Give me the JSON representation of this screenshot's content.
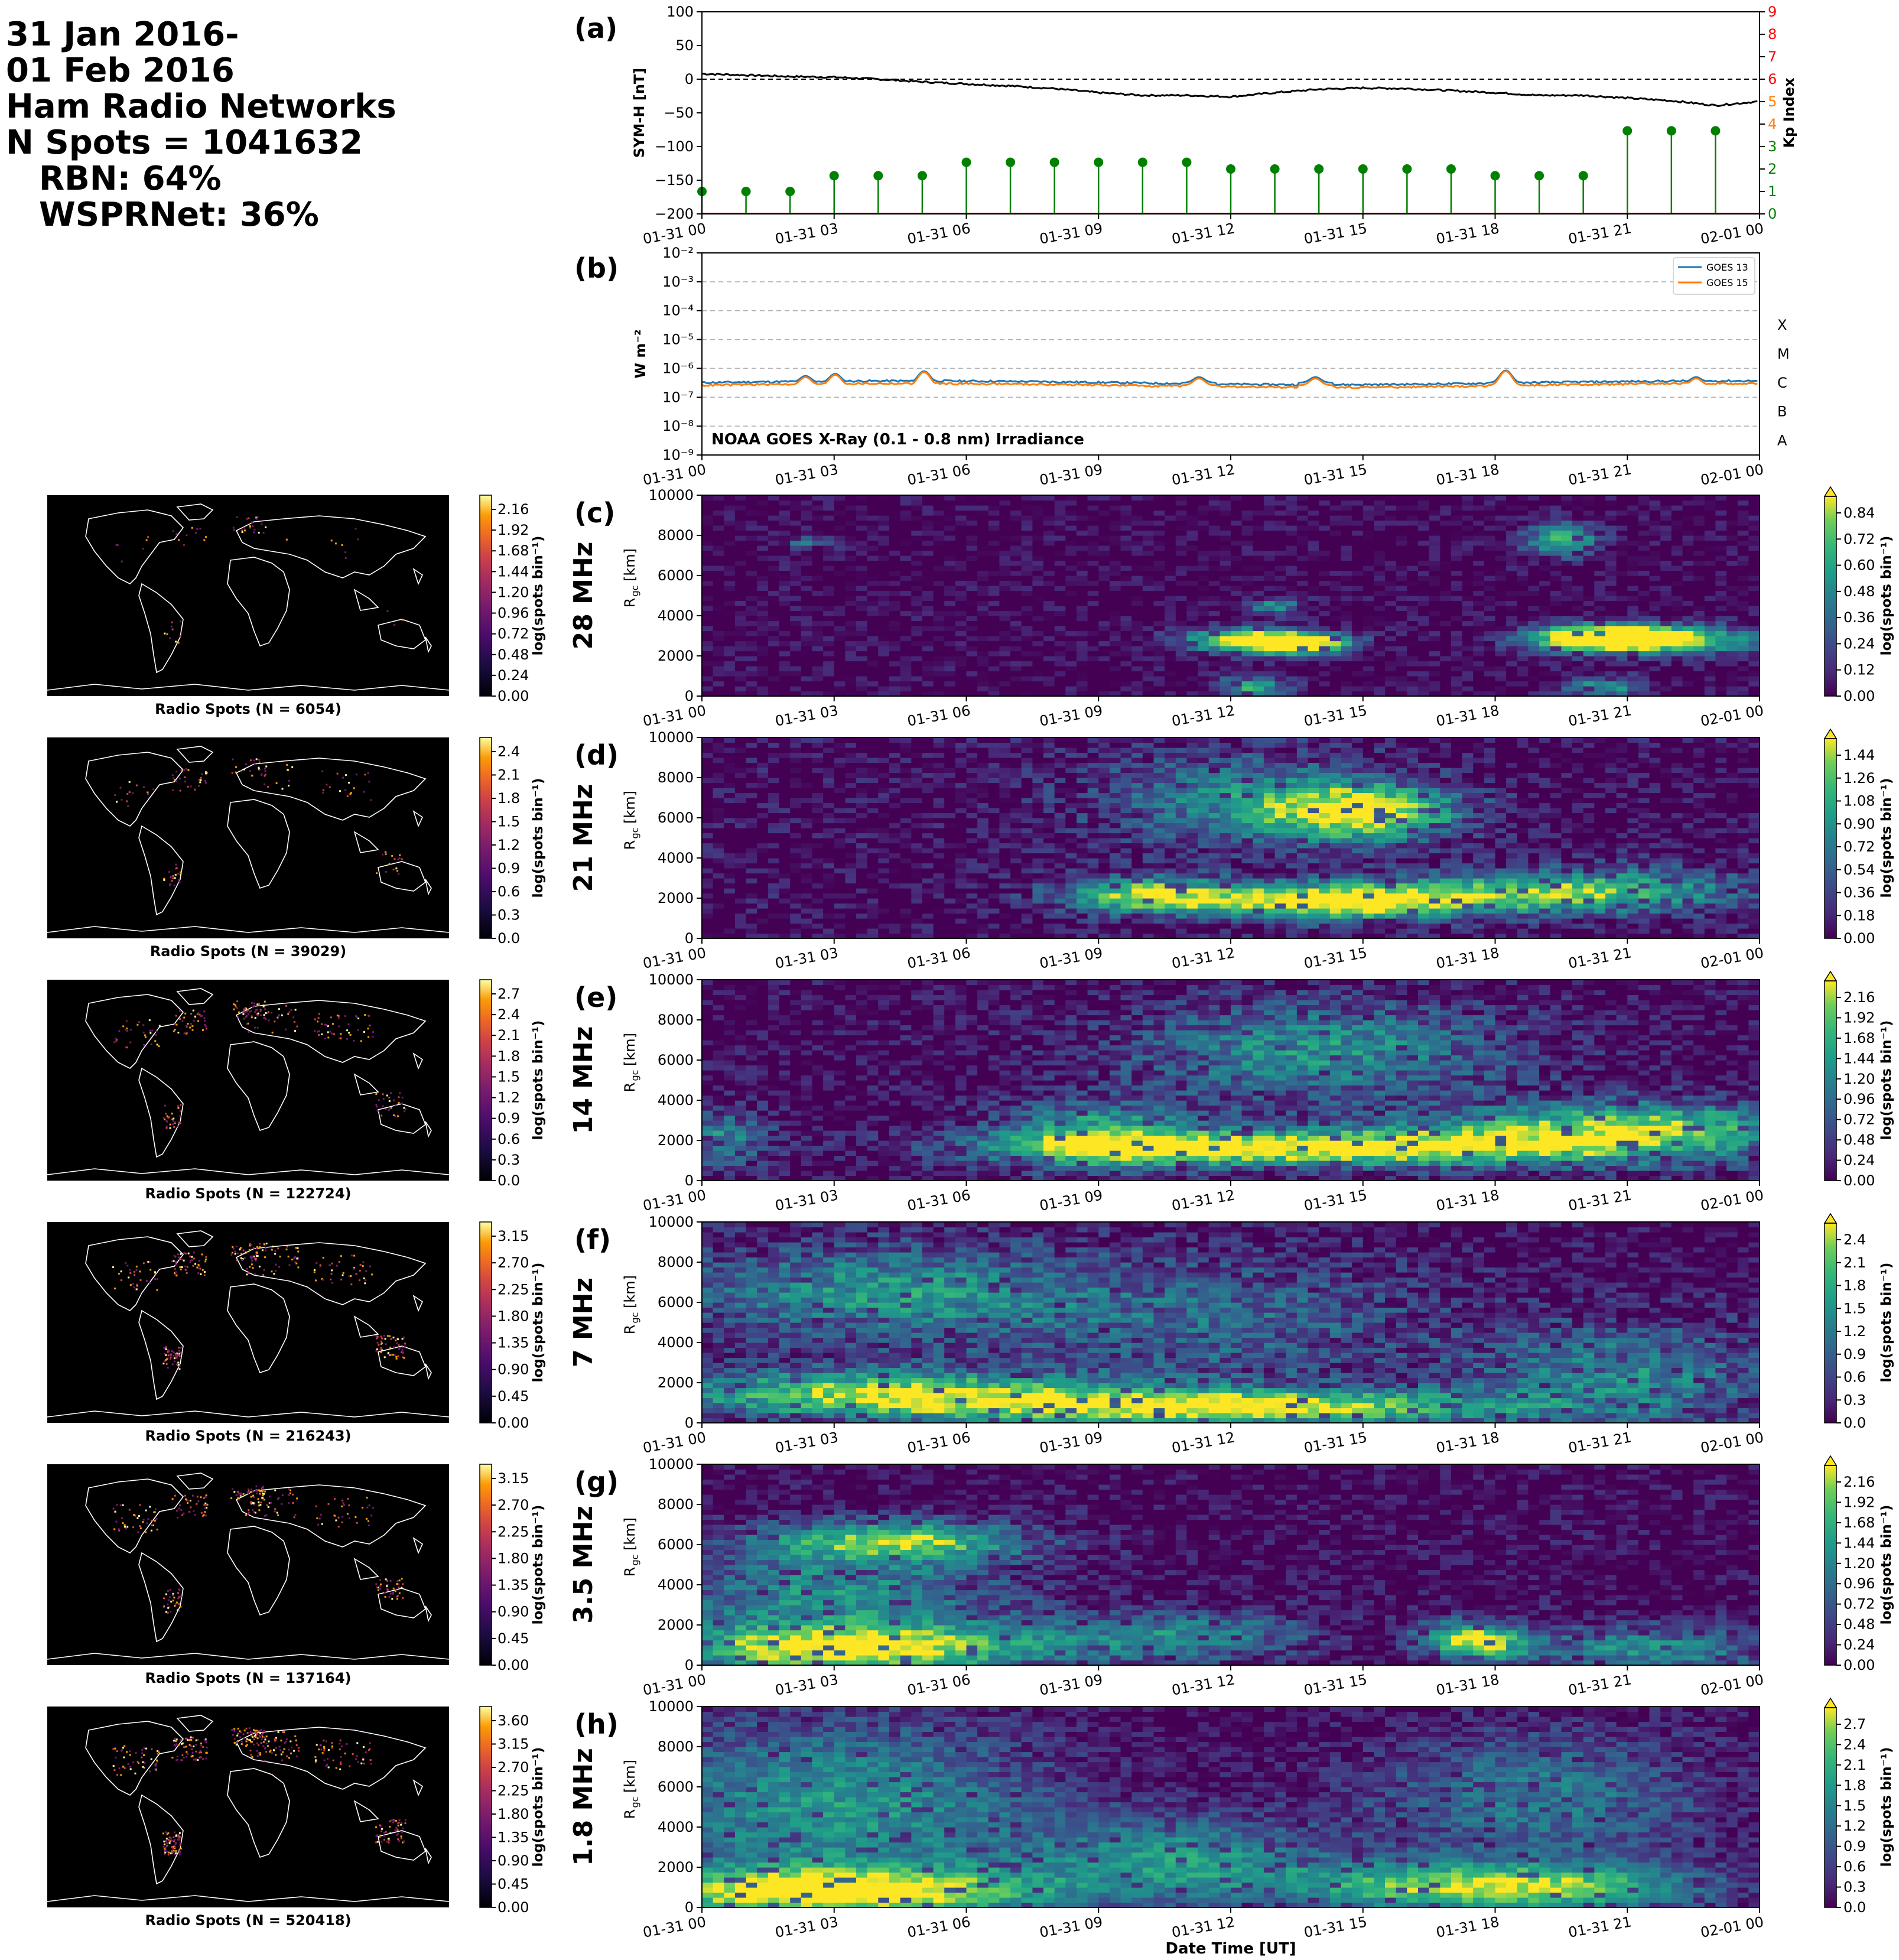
{
  "header": {
    "line1": "31 Jan 2016-",
    "line2": "01 Feb 2016",
    "line3": "Ham Radio Networks",
    "line4": "N Spots = 1041632",
    "line5": "RBN: 64%",
    "line6": "WSPRNet: 36%"
  },
  "colors": {
    "sym": "#000000",
    "kp": "#008000",
    "goes13": "#1f77b4",
    "goes15": "#ff7f0e",
    "kp_hi": "#ff0000"
  },
  "time_ticks": [
    "01-31 00",
    "01-31 03",
    "01-31 06",
    "01-31 09",
    "01-31 12",
    "01-31 15",
    "01-31 18",
    "01-31 21",
    "02-01 00"
  ],
  "xlabel": "Date Time [UT]",
  "chart_data": [
    {
      "type": "line",
      "panel": "(a)",
      "ylabel": "SYM-H [nT]",
      "y2label": "Kp Index",
      "ylim": [
        -200,
        100
      ],
      "y2lim": [
        0,
        9
      ],
      "yticks": [
        "100",
        "50",
        "0",
        "−50",
        "−100",
        "−150",
        "−200"
      ],
      "y2ticks": [
        "0",
        "1",
        "2",
        "3",
        "4",
        "5",
        "6",
        "7",
        "8",
        "9"
      ],
      "sym_h": {
        "hours": [
          0,
          1,
          2,
          3,
          4,
          5,
          6,
          7,
          8,
          9,
          10,
          11,
          12,
          13,
          14,
          15,
          16,
          17,
          18,
          19,
          20,
          21,
          22,
          23,
          24
        ],
        "values": [
          8,
          6,
          4,
          3,
          0,
          -4,
          -7,
          -10,
          -14,
          -20,
          -24,
          -24,
          -26,
          -20,
          -15,
          -13,
          -14,
          -17,
          -20,
          -24,
          -24,
          -28,
          -32,
          -39,
          -33
        ]
      },
      "kp": {
        "hours": [
          0,
          1.5,
          3,
          4.5,
          6,
          7.5,
          9,
          10.5,
          12,
          13.5,
          15,
          16.5,
          18,
          19.5,
          21,
          22.5
        ],
        "x_stems": [
          0,
          1,
          2,
          3,
          4,
          5,
          6,
          7,
          8,
          9,
          10,
          11,
          12,
          13,
          14,
          15,
          16,
          17,
          18,
          19,
          20,
          21,
          22,
          23
        ],
        "values": [
          1,
          1,
          1,
          1.7,
          1.7,
          1.7,
          2.3,
          2.3,
          2.3,
          2.3,
          2.3,
          2.3,
          2,
          2,
          2,
          2,
          2,
          2,
          1.7,
          1.7,
          1.7,
          3.7,
          3.7,
          3.7
        ]
      },
      "reference_line": 0
    },
    {
      "type": "line",
      "panel": "(b)",
      "ylabel": "W m⁻²",
      "scale": "log",
      "ylim": [
        1e-09,
        0.01
      ],
      "yticks": [
        "10⁻²",
        "10⁻³",
        "10⁻⁴",
        "10⁻⁵",
        "10⁻⁶",
        "10⁻⁷",
        "10⁻⁸",
        "10⁻⁹"
      ],
      "flare_classes": [
        "X",
        "M",
        "C",
        "B",
        "A"
      ],
      "annotation": "NOAA GOES X-Ray (0.1 - 0.8 nm) Irradiance",
      "series": [
        {
          "name": "GOES 13",
          "baseline": 3.2e-07,
          "peaks": [
            [
              9.8,
              5.5e-07
            ],
            [
              12.6,
              6.5e-07
            ],
            [
              21,
              8e-07
            ],
            [
              47,
              5e-07
            ],
            [
              58,
              5e-07
            ],
            [
              76,
              8.5e-07
            ],
            [
              94,
              5e-07
            ]
          ]
        },
        {
          "name": "GOES 15",
          "baseline": 2.6e-07,
          "peaks": [
            [
              9.8,
              5e-07
            ],
            [
              12.6,
              6e-07
            ],
            [
              21,
              7.5e-07
            ],
            [
              47,
              4.5e-07
            ],
            [
              58,
              4.5e-07
            ],
            [
              76,
              8e-07
            ],
            [
              94,
              4.5e-07
            ]
          ]
        }
      ]
    },
    {
      "type": "heatmap",
      "panel": "(c)",
      "band": "28 MHz",
      "ylabel": "R_gc [km]",
      "ylim": [
        0,
        10000
      ],
      "yticks": [
        "10000",
        "8000",
        "6000",
        "4000",
        "2000",
        "0"
      ],
      "cbar_label": "log(spots bin⁻¹)",
      "cbar_ticks": [
        "0.84",
        "0.72",
        "0.60",
        "0.48",
        "0.36",
        "0.24",
        "0.12",
        "0.00"
      ],
      "map_cbar_ticks": [
        "2.16",
        "1.92",
        "1.68",
        "1.44",
        "1.20",
        "0.96",
        "0.72",
        "0.48",
        "0.24",
        "0.00"
      ],
      "map_label": "Radio Spots (N = 6054)",
      "blobs": [
        [
          12.5,
          2800,
          1.6,
          600,
          1
        ],
        [
          13.5,
          2600,
          1.2,
          500,
          1
        ],
        [
          21.5,
          2800,
          2.5,
          700,
          1
        ],
        [
          20.5,
          3000,
          1.5,
          600,
          0.9
        ],
        [
          19.5,
          7800,
          0.8,
          800,
          0.8
        ],
        [
          13,
          4500,
          0.6,
          400,
          0.6
        ],
        [
          2.5,
          7700,
          0.6,
          300,
          0.5
        ],
        [
          12.5,
          500,
          0.8,
          600,
          0.7
        ],
        [
          20.5,
          500,
          1.0,
          500,
          0.6
        ]
      ],
      "noise": 0.15
    },
    {
      "type": "heatmap",
      "panel": "(d)",
      "band": "21 MHz",
      "ylabel": "R_gc [km]",
      "ylim": [
        0,
        10000
      ],
      "yticks": [
        "10000",
        "8000",
        "6000",
        "4000",
        "2000",
        "0"
      ],
      "cbar_label": "log(spots bin⁻¹)",
      "cbar_ticks": [
        "1.44",
        "1.26",
        "1.08",
        "0.90",
        "0.72",
        "0.54",
        "0.36",
        "0.18",
        "0.00"
      ],
      "map_cbar_ticks": [
        "2.4",
        "2.1",
        "1.8",
        "1.5",
        "1.2",
        "0.9",
        "0.6",
        "0.3",
        "0.0"
      ],
      "map_label": "Radio Spots (N = 39029)",
      "blobs": [
        [
          14,
          1800,
          3.2,
          900,
          1
        ],
        [
          15,
          6300,
          2.2,
          1400,
          1
        ],
        [
          10,
          2200,
          2.0,
          900,
          0.8
        ],
        [
          18,
          2200,
          4.0,
          1000,
          0.6
        ],
        [
          12,
          7000,
          3.5,
          2500,
          0.45
        ],
        [
          21,
          2500,
          3.0,
          1200,
          0.45
        ]
      ],
      "noise": 0.2
    },
    {
      "type": "heatmap",
      "panel": "(e)",
      "band": "14 MHz",
      "ylabel": "R_gc [km]",
      "ylim": [
        0,
        10000
      ],
      "yticks": [
        "10000",
        "8000",
        "6000",
        "4000",
        "2000",
        "0"
      ],
      "cbar_label": "log(spots bin⁻¹)",
      "cbar_ticks": [
        "2.16",
        "1.92",
        "1.68",
        "1.44",
        "1.20",
        "0.96",
        "0.72",
        "0.48",
        "0.24",
        "0.00"
      ],
      "map_cbar_ticks": [
        "2.7",
        "2.4",
        "2.1",
        "1.8",
        "1.5",
        "1.2",
        "0.9",
        "0.6",
        "0.3",
        "0.0"
      ],
      "map_label": "Radio Spots (N = 122724)",
      "blobs": [
        [
          13,
          1600,
          5.5,
          800,
          1
        ],
        [
          19,
          2200,
          4.5,
          1400,
          0.7
        ],
        [
          14,
          6500,
          4.5,
          2500,
          0.55
        ],
        [
          9,
          2200,
          2.5,
          1600,
          0.7
        ],
        [
          0.5,
          2200,
          1.0,
          1500,
          0.5
        ],
        [
          22,
          2600,
          3.0,
          1500,
          0.5
        ]
      ],
      "noise": 0.2
    },
    {
      "type": "heatmap",
      "panel": "(f)",
      "band": "7 MHz",
      "ylabel": "R_gc [km]",
      "ylim": [
        0,
        10000
      ],
      "yticks": [
        "10000",
        "8000",
        "6000",
        "4000",
        "2000",
        "0"
      ],
      "cbar_label": "log(spots bin⁻¹)",
      "cbar_ticks": [
        "2.4",
        "2.1",
        "1.8",
        "1.5",
        "1.2",
        "0.9",
        "0.6",
        "0.3",
        "0.0"
      ],
      "map_cbar_ticks": [
        "3.15",
        "2.70",
        "2.25",
        "1.80",
        "1.35",
        "0.90",
        "0.45",
        "0.00"
      ],
      "map_label": "Radio Spots (N = 216243)",
      "blobs": [
        [
          12,
          800,
          6.5,
          900,
          1
        ],
        [
          4,
          1500,
          5.0,
          1200,
          0.85
        ],
        [
          4,
          6500,
          5.0,
          2500,
          0.55
        ],
        [
          21,
          2500,
          3.5,
          2500,
          0.5
        ],
        [
          12,
          5000,
          5,
          3500,
          0.35
        ]
      ],
      "noise": 0.2
    },
    {
      "type": "heatmap",
      "panel": "(g)",
      "band": "3.5 MHz",
      "ylabel": "R_gc [km]",
      "ylim": [
        0,
        10000
      ],
      "yticks": [
        "10000",
        "8000",
        "6000",
        "4000",
        "2000",
        "0"
      ],
      "cbar_label": "log(spots bin⁻¹)",
      "cbar_ticks": [
        "2.16",
        "1.92",
        "1.68",
        "1.44",
        "1.20",
        "0.96",
        "0.72",
        "0.48",
        "0.24",
        "0.00"
      ],
      "map_cbar_ticks": [
        "3.15",
        "2.70",
        "2.25",
        "1.80",
        "1.35",
        "0.90",
        "0.45",
        "0.00"
      ],
      "map_label": "Radio Spots (N = 137164)",
      "blobs": [
        [
          3.5,
          800,
          4.5,
          1200,
          1
        ],
        [
          4.5,
          6200,
          3.0,
          1000,
          0.8
        ],
        [
          3,
          3500,
          4.0,
          2500,
          0.55
        ],
        [
          17.5,
          1200,
          1.2,
          1000,
          0.95
        ],
        [
          11,
          1500,
          3,
          1200,
          0.5
        ],
        [
          21.5,
          800,
          3.0,
          1200,
          0.55
        ]
      ],
      "noise": 0.18
    },
    {
      "type": "heatmap",
      "panel": "(h)",
      "band": "1.8 MHz",
      "ylabel": "R_gc [km]",
      "ylim": [
        0,
        10000
      ],
      "yticks": [
        "10000",
        "8000",
        "6000",
        "4000",
        "2000",
        "0"
      ],
      "cbar_label": "log(spots bin⁻¹)",
      "cbar_ticks": [
        "2.7",
        "2.4",
        "2.1",
        "1.8",
        "1.5",
        "1.2",
        "0.9",
        "0.6",
        "0.3",
        "0.0"
      ],
      "map_cbar_ticks": [
        "3.60",
        "3.15",
        "2.70",
        "2.25",
        "1.80",
        "1.35",
        "0.90",
        "0.45",
        "0.00"
      ],
      "map_label": "Radio Spots (N = 520418)",
      "blobs": [
        [
          3,
          800,
          5.0,
          1200,
          1
        ],
        [
          18,
          1000,
          4.5,
          1200,
          0.95
        ],
        [
          3,
          5000,
          5,
          4500,
          0.6
        ],
        [
          11,
          2500,
          3.5,
          2000,
          0.55
        ],
        [
          19,
          5500,
          4,
          3500,
          0.45
        ]
      ],
      "noise": 0.15
    }
  ]
}
